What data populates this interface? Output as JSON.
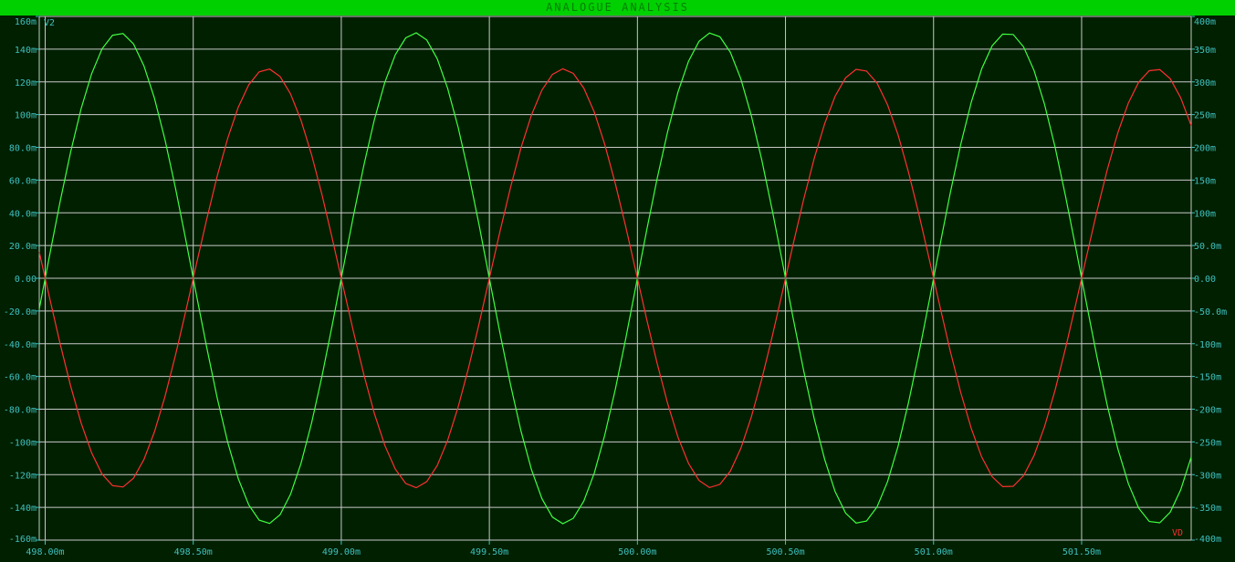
{
  "window": {
    "title": "ANALOGUE ANALYSIS"
  },
  "colors": {
    "background": "#002000",
    "grid": "#c8c8c8",
    "axis_text": "#40c0c0",
    "title_bar": "#00d000",
    "title_text": "#008000",
    "series_v2": "#40ff40",
    "series_vd": "#ff3030"
  },
  "chart_data": {
    "type": "line",
    "grid": true,
    "x_unit": "s",
    "xlim": [
      0.49798,
      0.50187
    ],
    "x_ticks": [
      0.498,
      0.4985,
      0.499,
      0.4995,
      0.5,
      0.5005,
      0.501,
      0.5015
    ],
    "x_tick_labels": [
      "498.00m",
      "498.50m",
      "499.00m",
      "499.50m",
      "500.00m",
      "500.50m",
      "501.00m",
      "501.50m"
    ],
    "y_left": {
      "ylim": [
        -0.16,
        0.16
      ],
      "ticks": [
        0.16,
        0.14,
        0.12,
        0.1,
        0.08,
        0.06,
        0.04,
        0.02,
        0,
        -0.02,
        -0.04,
        -0.06,
        -0.08,
        -0.1,
        -0.12,
        -0.14,
        -0.16
      ],
      "tick_labels": [
        "160m",
        "140m",
        "120m",
        "100m",
        "80.0m",
        "60.0m",
        "40.0m",
        "20.0m",
        "0.00",
        "-20.0m",
        "-40.0m",
        "-60.0m",
        "-80.0m",
        "-100m",
        "-120m",
        "-140m",
        "-160m"
      ]
    },
    "y_right": {
      "ylim": [
        -0.4,
        0.4
      ],
      "ticks": [
        0.4,
        0.35,
        0.3,
        0.25,
        0.2,
        0.15,
        0.1,
        0.05,
        0,
        -0.05,
        -0.1,
        -0.15,
        -0.2,
        -0.25,
        -0.3,
        -0.35,
        -0.4
      ],
      "tick_labels": [
        "400m",
        "350m",
        "300m",
        "250m",
        "200m",
        "150m",
        "100m",
        "50.0m",
        "0.00",
        "-50.0m",
        "-100m",
        "-150m",
        "-200m",
        "-250m",
        "-300m",
        "-350m",
        "-400m"
      ]
    },
    "series": [
      {
        "name": "V2",
        "axis": "left",
        "color": "#40ff40",
        "waveform": "sine",
        "amplitude": 0.15,
        "frequency_hz": 1000,
        "phase_deg": 0
      },
      {
        "name": "VD",
        "axis": "right",
        "color": "#ff3030",
        "waveform": "sine",
        "amplitude": 0.32,
        "frequency_hz": 1000,
        "phase_deg": 180
      }
    ]
  }
}
